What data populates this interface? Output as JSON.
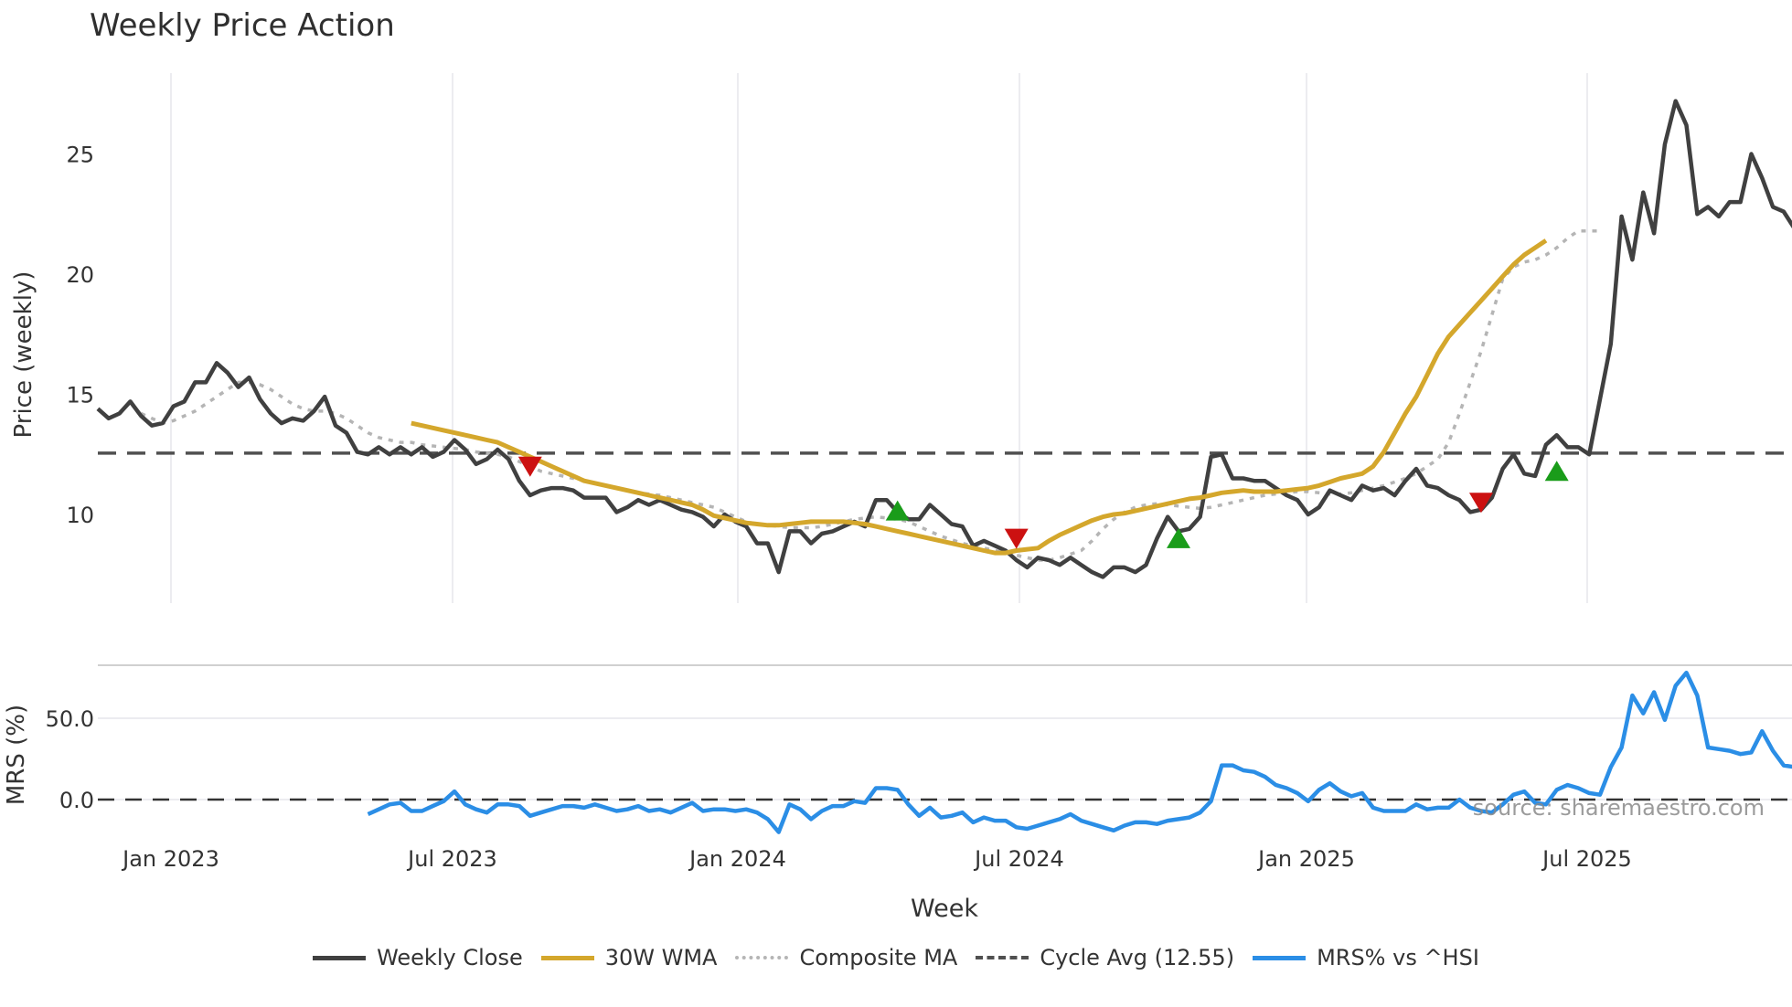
{
  "title": "Weekly Price Action",
  "watermark": "source: sharemaestro.com",
  "colors": {
    "close": "#404040",
    "wma": "#d4a72c",
    "composite": "#b5b5b5",
    "cycle": "#505050",
    "mrs": "#2b8ee6",
    "buy": "#1a9c1a",
    "sell": "#cc1111",
    "grid": "#ececf0"
  },
  "legend": [
    {
      "key": "close",
      "label": "Weekly Close",
      "style": "solid"
    },
    {
      "key": "wma",
      "label": "30W WMA",
      "style": "solid"
    },
    {
      "key": "composite",
      "label": "Composite MA",
      "style": "dotted"
    },
    {
      "key": "cycle",
      "label": "Cycle Avg (12.55)",
      "style": "dashed"
    },
    {
      "key": "mrs",
      "label": "MRS% vs ^HSI",
      "style": "solid"
    }
  ],
  "chart_data": [
    {
      "type": "line",
      "title": "Weekly Price Action",
      "xlabel": "Week",
      "ylabel": "Price (weekly)",
      "x_tick_labels": [
        "Jan 2023",
        "Jul 2023",
        "Jan 2024",
        "Jul 2024",
        "Jan 2025",
        "Jul 2025"
      ],
      "y_ticks": [
        10,
        15,
        20,
        25
      ],
      "ylim": [
        6.0,
        28.5
      ],
      "grid": true,
      "cycle_avg": 12.55,
      "series": [
        {
          "name": "Weekly Close",
          "start_index": 0,
          "values": [
            14.4,
            14.0,
            14.2,
            14.7,
            14.1,
            13.7,
            13.8,
            14.5,
            14.7,
            15.5,
            15.5,
            16.3,
            15.9,
            15.3,
            15.7,
            14.8,
            14.2,
            13.8,
            14.0,
            13.9,
            14.3,
            14.9,
            13.7,
            13.4,
            12.6,
            12.5,
            12.8,
            12.5,
            12.8,
            12.5,
            12.8,
            12.4,
            12.6,
            13.1,
            12.7,
            12.1,
            12.3,
            12.7,
            12.3,
            11.4,
            10.8,
            11.0,
            11.1,
            11.1,
            11.0,
            10.7,
            10.7,
            10.7,
            10.1,
            10.3,
            10.6,
            10.4,
            10.6,
            10.4,
            10.2,
            10.1,
            9.9,
            9.5,
            10.0,
            9.7,
            9.5,
            8.8,
            8.8,
            7.6,
            9.3,
            9.3,
            8.8,
            9.2,
            9.3,
            9.5,
            9.7,
            9.5,
            10.6,
            10.6,
            10.1,
            9.8,
            9.8,
            10.4,
            10.0,
            9.6,
            9.5,
            8.7,
            8.9,
            8.7,
            8.5,
            8.1,
            7.8,
            8.2,
            8.1,
            7.9,
            8.2,
            7.9,
            7.6,
            7.4,
            7.8,
            7.8,
            7.6,
            7.9,
            9.0,
            9.9,
            9.3,
            9.4,
            9.9,
            12.4,
            12.5,
            11.5,
            11.5,
            11.4,
            11.4,
            11.1,
            10.8,
            10.6,
            10.0,
            10.3,
            11.0,
            10.8,
            10.6,
            11.2,
            11.0,
            11.1,
            10.8,
            11.4,
            11.9,
            11.2,
            11.1,
            10.8,
            10.6,
            10.1,
            10.2,
            10.7,
            11.9,
            12.5,
            11.7,
            11.6,
            12.9,
            13.3,
            12.8,
            12.8,
            12.5,
            14.8,
            17.1,
            22.4,
            20.6,
            23.4,
            21.7,
            25.4,
            27.2,
            26.2,
            22.5,
            22.8,
            22.4,
            23.0,
            23.0,
            25.0,
            24.0,
            22.8,
            22.6,
            21.9
          ]
        },
        {
          "name": "30W WMA",
          "start_index": 29,
          "values": [
            13.8,
            13.7,
            13.6,
            13.5,
            13.4,
            13.3,
            13.2,
            13.1,
            13.0,
            12.8,
            12.6,
            12.4,
            12.2,
            12.0,
            11.8,
            11.6,
            11.4,
            11.3,
            11.2,
            11.1,
            11.0,
            10.9,
            10.8,
            10.7,
            10.6,
            10.5,
            10.4,
            10.2,
            9.95,
            9.85,
            9.75,
            9.65,
            9.6,
            9.55,
            9.55,
            9.6,
            9.65,
            9.7,
            9.7,
            9.7,
            9.7,
            9.65,
            9.6,
            9.5,
            9.4,
            9.3,
            9.2,
            9.1,
            9.0,
            8.9,
            8.8,
            8.7,
            8.6,
            8.5,
            8.4,
            8.4,
            8.5,
            8.55,
            8.6,
            8.9,
            9.15,
            9.35,
            9.55,
            9.75,
            9.9,
            10.0,
            10.05,
            10.15,
            10.25,
            10.35,
            10.45,
            10.55,
            10.65,
            10.7,
            10.8,
            10.9,
            10.95,
            11.0,
            10.95,
            10.95,
            10.95,
            11.0,
            11.05,
            11.1,
            11.2,
            11.35,
            11.5,
            11.6,
            11.7,
            12.0,
            12.6,
            13.4,
            14.2,
            14.9,
            15.8,
            16.7,
            17.4,
            17.9,
            18.4,
            18.9,
            19.4,
            19.9,
            20.4,
            20.8,
            21.1,
            21.4
          ]
        },
        {
          "name": "Composite MA",
          "start_index": 4,
          "values": [
            14.2,
            14.0,
            13.8,
            13.9,
            14.1,
            14.3,
            14.6,
            14.9,
            15.2,
            15.5,
            15.5,
            15.4,
            15.2,
            14.9,
            14.6,
            14.4,
            14.3,
            14.3,
            14.2,
            14.0,
            13.7,
            13.4,
            13.2,
            13.1,
            13.0,
            13.0,
            12.9,
            12.85,
            12.8,
            12.75,
            12.7,
            12.6,
            12.55,
            12.5,
            12.4,
            12.2,
            12.0,
            11.8,
            11.7,
            11.6,
            11.5,
            11.4,
            11.3,
            11.2,
            11.1,
            11.0,
            10.9,
            10.85,
            10.8,
            10.7,
            10.6,
            10.5,
            10.4,
            10.3,
            10.1,
            9.9,
            9.7,
            9.6,
            9.55,
            9.5,
            9.45,
            9.45,
            9.45,
            9.5,
            9.6,
            9.7,
            9.8,
            9.85,
            9.9,
            9.85,
            9.8,
            9.7,
            9.5,
            9.3,
            9.1,
            8.95,
            8.8,
            8.7,
            8.6,
            8.5,
            8.4,
            8.3,
            8.2,
            8.1,
            8.1,
            8.2,
            8.35,
            8.5,
            8.9,
            9.4,
            9.8,
            10.1,
            10.3,
            10.4,
            10.45,
            10.4,
            10.35,
            10.3,
            10.25,
            10.3,
            10.4,
            10.5,
            10.6,
            10.7,
            10.8,
            10.85,
            10.9,
            10.95,
            10.95,
            10.9,
            10.85,
            10.85,
            10.9,
            11.0,
            11.1,
            11.2,
            11.35,
            11.5,
            11.7,
            12.0,
            12.3,
            13.0,
            14.2,
            15.5,
            16.8,
            18.3,
            19.8,
            20.3,
            20.5,
            20.6,
            20.8,
            21.1,
            21.5,
            21.8,
            21.8,
            21.8
          ]
        }
      ],
      "signals": [
        {
          "type": "sell",
          "index": 40,
          "value": 12.1
        },
        {
          "type": "buy",
          "index": 74,
          "value": 10.05
        },
        {
          "type": "sell",
          "index": 85,
          "value": 9.1
        },
        {
          "type": "buy",
          "index": 100,
          "value": 8.9
        },
        {
          "type": "sell",
          "index": 128,
          "value": 10.6
        },
        {
          "type": "buy",
          "index": 135,
          "value": 11.7
        }
      ]
    },
    {
      "type": "line",
      "ylabel": "MRS (%)",
      "y_ticks": [
        0.0,
        50.0
      ],
      "y_tick_labels": [
        "0.0",
        "50.0"
      ],
      "ylim": [
        -25,
        90
      ],
      "series": [
        {
          "name": "MRS% vs ^HSI",
          "start_index": 25,
          "values": [
            -9,
            -6,
            -3,
            -2,
            -7,
            -7,
            -4,
            -1,
            5,
            -3,
            -6,
            -8,
            -3,
            -3,
            -4,
            -10,
            -8,
            -6,
            -4,
            -4,
            -5,
            -3,
            -5,
            -7,
            -6,
            -4,
            -7,
            -6,
            -8,
            -5,
            -2,
            -7,
            -6,
            -6,
            -7,
            -6,
            -8,
            -12,
            -20,
            -3,
            -6,
            -12,
            -7,
            -4,
            -4,
            -1,
            -2,
            7,
            7,
            6,
            -3,
            -10,
            -5,
            -11,
            -10,
            -8,
            -14,
            -11,
            -13,
            -13,
            -17,
            -18,
            -16,
            -14,
            -12,
            -9,
            -13,
            -15,
            -17,
            -19,
            -16,
            -14,
            -14,
            -15,
            -13,
            -12,
            -11,
            -8,
            -1,
            21,
            21,
            18,
            17,
            14,
            9,
            7,
            4,
            -1,
            6,
            10,
            5,
            2,
            4,
            -5,
            -7,
            -7,
            -7,
            -3,
            -6,
            -5,
            -5,
            0,
            -5,
            -7,
            -8,
            -3,
            3,
            5,
            -2,
            -3,
            6,
            9,
            7,
            4,
            3,
            20,
            32,
            64,
            53,
            66,
            49,
            70,
            78,
            64,
            32,
            31,
            30,
            28,
            29,
            42,
            30,
            21,
            20,
            12
          ]
        }
      ]
    }
  ]
}
